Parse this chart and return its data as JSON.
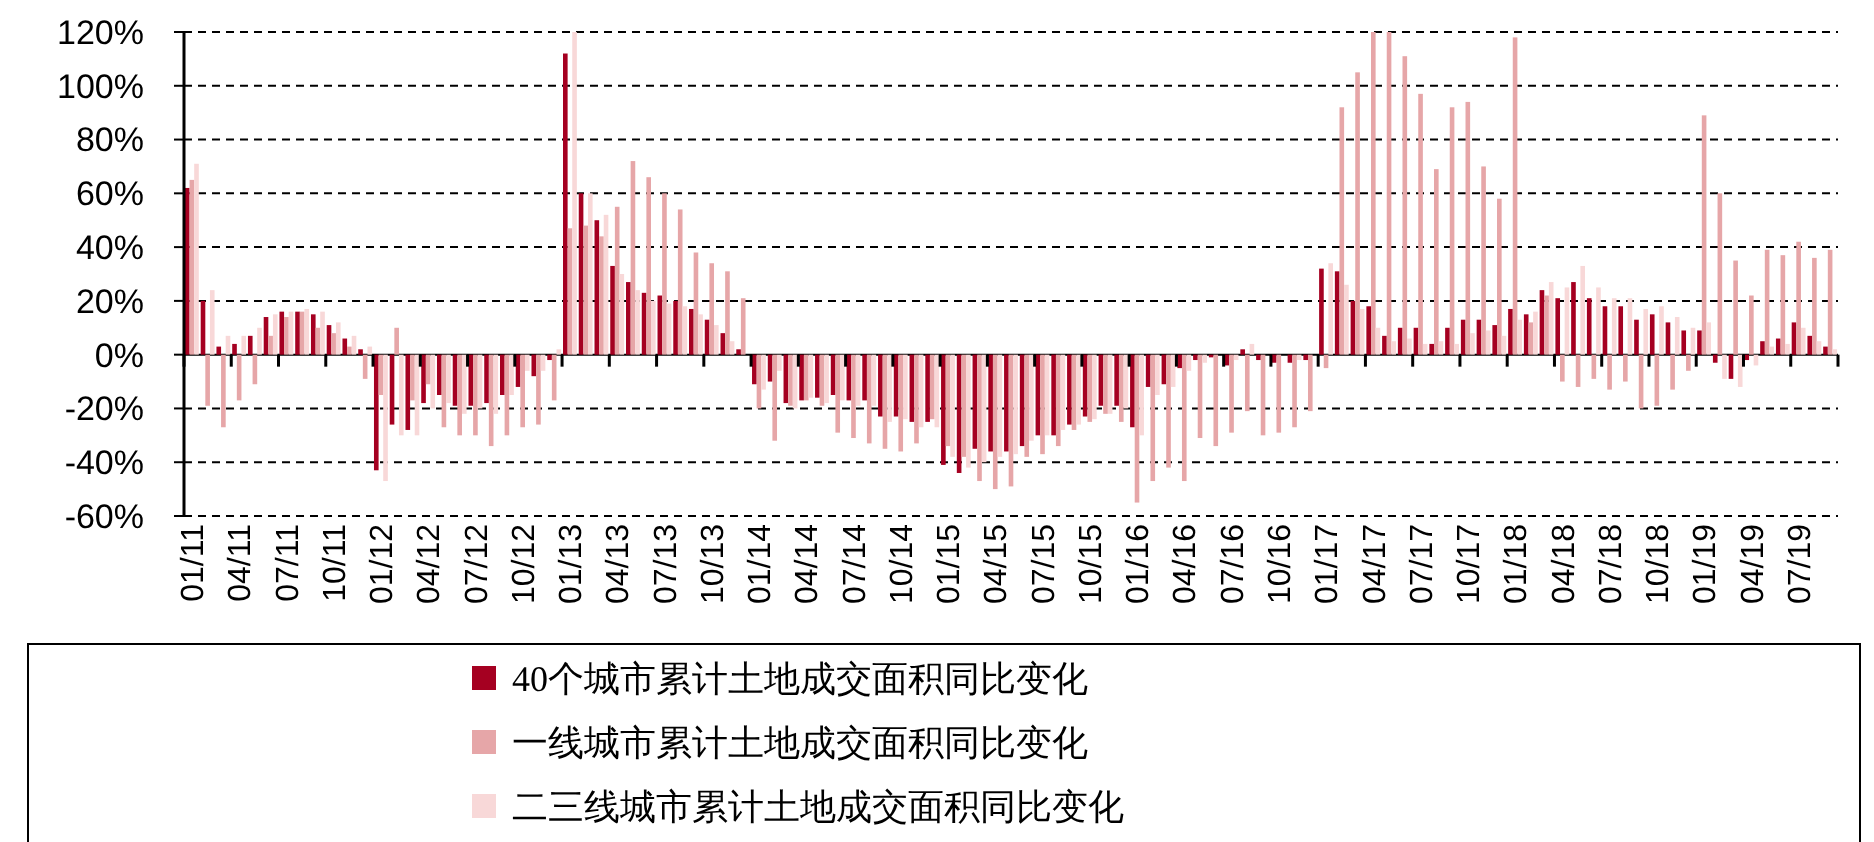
{
  "chart_data": {
    "type": "bar",
    "categories": [
      "01/11",
      null,
      null,
      "04/11",
      null,
      null,
      "07/11",
      null,
      null,
      "10/11",
      null,
      null,
      "01/12",
      null,
      null,
      "04/12",
      null,
      null,
      "07/12",
      null,
      null,
      "10/12",
      null,
      null,
      "01/13",
      null,
      null,
      "04/13",
      null,
      null,
      "07/13",
      null,
      null,
      "10/13",
      null,
      null,
      "01/14",
      null,
      null,
      "04/14",
      null,
      null,
      "07/14",
      null,
      null,
      "10/14",
      null,
      null,
      "01/15",
      null,
      null,
      "04/15",
      null,
      null,
      "07/15",
      null,
      null,
      "10/15",
      null,
      null,
      "01/16",
      null,
      null,
      "04/16",
      null,
      null,
      "07/16",
      null,
      null,
      "10/16",
      null,
      null,
      "01/17",
      null,
      null,
      "04/17",
      null,
      null,
      "07/17",
      null,
      null,
      "10/17",
      null,
      null,
      "01/18",
      null,
      null,
      "04/18",
      null,
      null,
      "07/18",
      null,
      null,
      "10/18",
      null,
      null,
      "01/19",
      null,
      null,
      "04/19",
      null,
      null,
      "07/19",
      null,
      null
    ],
    "series": [
      {
        "name": "40个城市累计土地成交面积同比变化",
        "color": "#a50021",
        "values": [
          62,
          20,
          3,
          4,
          7,
          14,
          16,
          16,
          15,
          11,
          6,
          2,
          -43,
          -26,
          -28,
          -18,
          -15,
          -19,
          -19,
          -18,
          -15,
          -12,
          -8,
          -2,
          112,
          60,
          50,
          33,
          27,
          23,
          22,
          20,
          17,
          13,
          8,
          2,
          -11,
          -10,
          -18,
          -17,
          -16,
          -15,
          -17,
          -17,
          -23,
          -23,
          -25,
          -25,
          -41,
          -44,
          -35,
          -36,
          -36,
          -34,
          -30,
          -30,
          -26,
          -23,
          -19,
          -19,
          -27,
          -12,
          -11,
          -5,
          -2,
          -1,
          -4,
          2,
          -2,
          -3,
          -3,
          -2,
          32,
          31,
          20,
          18,
          7,
          10,
          10,
          4,
          10,
          13,
          13,
          11,
          17,
          15,
          24,
          21,
          27,
          21,
          18,
          18,
          13,
          15,
          12,
          9,
          9,
          -3,
          -9,
          -2,
          5,
          6,
          12,
          7,
          3
        ]
      },
      {
        "name": "一线城市累计土地成交面积同比变化",
        "color": "#e6a6a8",
        "values": [
          65,
          -19,
          -27,
          -17,
          -11,
          7,
          14,
          16,
          10,
          8,
          3,
          -9,
          -15,
          10,
          -17,
          -11,
          -27,
          -30,
          -30,
          -34,
          -30,
          -27,
          -26,
          -17,
          47,
          48,
          44,
          55,
          72,
          66,
          60,
          54,
          38,
          34,
          31,
          21,
          -20,
          -32,
          -19,
          -17,
          -19,
          -29,
          -31,
          -33,
          -35,
          -36,
          -33,
          -24,
          -34,
          -38,
          -47,
          -50,
          -49,
          -38,
          -37,
          -34,
          -28,
          -25,
          -22,
          -25,
          -55,
          -47,
          -42,
          -47,
          -31,
          -34,
          -29,
          -21,
          -30,
          -29,
          -27,
          -21,
          -5,
          92,
          105,
          120,
          120,
          111,
          97,
          69,
          92,
          94,
          70,
          58,
          118,
          12,
          22,
          -10,
          -12,
          -9,
          -13,
          -10,
          -20,
          -19,
          -13,
          -6,
          89,
          60,
          35,
          22,
          39,
          37,
          42,
          36,
          39
        ]
      },
      {
        "name": "二三线城市累计土地成交面积同比变化",
        "color": "#f8d8d8",
        "values": [
          71,
          24,
          7,
          7,
          10,
          15,
          16,
          17,
          16,
          12,
          7,
          3,
          -47,
          -30,
          -30,
          -20,
          -18,
          -22,
          -20,
          -22,
          -15,
          -6,
          -6,
          2,
          120,
          60,
          52,
          30,
          24,
          20,
          19,
          18,
          15,
          11,
          5,
          null,
          -13,
          -6,
          -20,
          -16,
          -18,
          -17,
          -19,
          -19,
          -25,
          -24,
          -27,
          -27,
          -38,
          -42,
          -40,
          -38,
          -37,
          -32,
          -30,
          -28,
          -26,
          -24,
          -22,
          -20,
          -30,
          -15,
          -12,
          -6,
          -3,
          null,
          -2,
          4,
          null,
          null,
          -2,
          null,
          34,
          26,
          17,
          10,
          5,
          6,
          4,
          5,
          4,
          8,
          9,
          7,
          13,
          16,
          27,
          25,
          33,
          25,
          21,
          21,
          17,
          18,
          14,
          10,
          12,
          -9,
          -12,
          -4,
          3,
          4,
          10,
          5,
          2
        ]
      }
    ],
    "ylim": [
      -60,
      120
    ],
    "yticks": [
      {
        "value": -60,
        "label": "-60%"
      },
      {
        "value": -40,
        "label": "-40%"
      },
      {
        "value": -20,
        "label": "-20%"
      },
      {
        "value": 0,
        "label": "0%"
      },
      {
        "value": 20,
        "label": "20%"
      },
      {
        "value": 40,
        "label": "40%"
      },
      {
        "value": 60,
        "label": "60%"
      },
      {
        "value": 80,
        "label": "80%"
      },
      {
        "value": 100,
        "label": "100%"
      },
      {
        "value": 120,
        "label": "120%"
      }
    ],
    "grid": "y",
    "legend": "bottom"
  }
}
